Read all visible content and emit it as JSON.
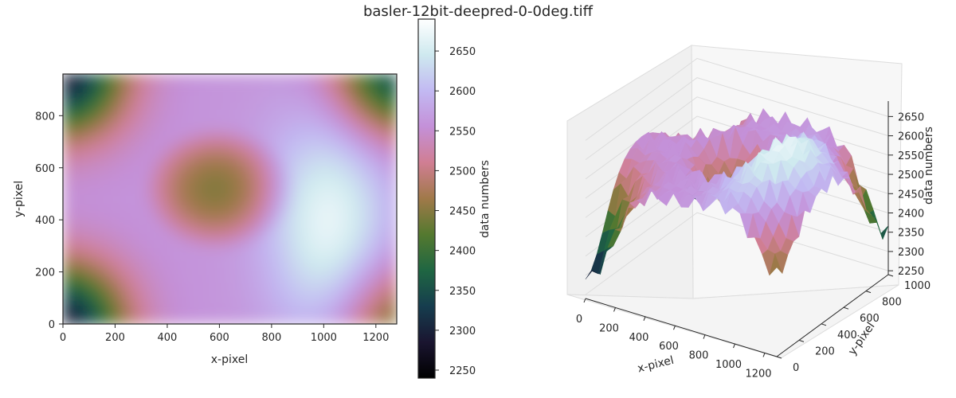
{
  "figure": {
    "title": "basler-12bit-deepred-0-0deg.tiff"
  },
  "chart_data": [
    {
      "type": "heatmap",
      "xlabel": "x-pixel",
      "ylabel": "y-pixel",
      "xlim": [
        0,
        1280
      ],
      "ylim": [
        0,
        960
      ],
      "xticks": [
        "0",
        "200",
        "400",
        "600",
        "800",
        "1000",
        "1200"
      ],
      "yticks": [
        "0",
        "200",
        "400",
        "600",
        "800"
      ],
      "colorbar": {
        "label": "data numbers",
        "range": [
          2240,
          2690
        ],
        "ticks": [
          "2250",
          "2300",
          "2350",
          "2400",
          "2450",
          "2500",
          "2550",
          "2600",
          "2650"
        ],
        "colormap": "cubehelix",
        "colors": [
          "#000000",
          "#1a1530",
          "#163d4e",
          "#1f6642",
          "#54792f",
          "#a07949",
          "#d07e93",
          "#c490d8",
          "#c2b9f2",
          "#cee9ef",
          "#ffffff"
        ]
      },
      "field": {
        "description_values": "radial intensity pattern: green low-value core near (600,500), pink ring, bright white band on right side, dark corners",
        "core_center": [
          600,
          520
        ],
        "core_value": 2445,
        "ring_value": 2560,
        "bright_side_value": 2670,
        "corner_value": 2290
      }
    },
    {
      "type": "surface",
      "xlabel": "x-pixel",
      "ylabel": "y-pixel",
      "zlabel": "data numbers",
      "xticks": [
        "0",
        "200",
        "400",
        "600",
        "800",
        "1000",
        "1200"
      ],
      "yticks": [
        "0",
        "200",
        "400",
        "600",
        "800",
        "1000"
      ],
      "zticks": [
        "2250",
        "2300",
        "2350",
        "2400",
        "2450",
        "2500",
        "2550",
        "2600",
        "2650"
      ],
      "zlim": [
        2240,
        2690
      ]
    }
  ]
}
